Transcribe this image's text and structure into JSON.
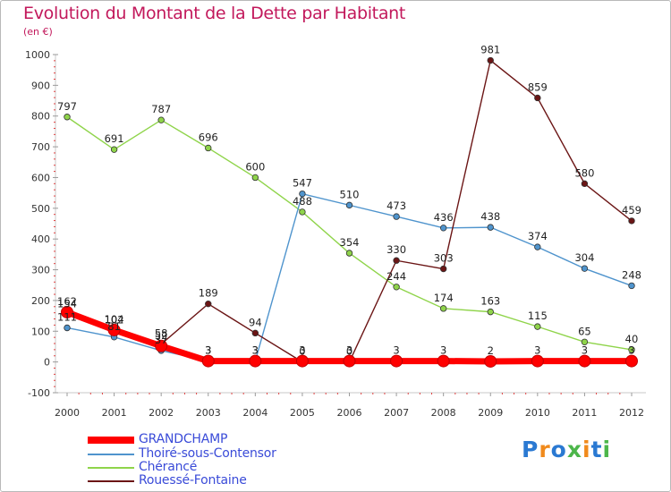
{
  "title": "Evolution du Montant de la Dette par Habitant",
  "unit": "(en €)",
  "brand": "Proxiti",
  "chart_data": {
    "type": "line",
    "x": [
      "2000",
      "2001",
      "2002",
      "2003",
      "2004",
      "2005",
      "2006",
      "2007",
      "2008",
      "2009",
      "2010",
      "2011",
      "2012"
    ],
    "ylim": [
      -100,
      1000
    ],
    "yticks": [
      "-100",
      "0",
      "100",
      "200",
      "300",
      "400",
      "500",
      "600",
      "700",
      "800",
      "900",
      "1000"
    ],
    "grid": false,
    "series": [
      {
        "name": "Chérancé",
        "color": "#8fd44a",
        "values": [
          797,
          691,
          787,
          696,
          600,
          488,
          354,
          244,
          174,
          163,
          115,
          65,
          40
        ],
        "labels": [
          "797",
          "691",
          "787",
          "696",
          "600",
          "488",
          "354",
          "244",
          "174",
          "163",
          "115",
          "65",
          "40"
        ]
      },
      {
        "name": "Thoiré-sous-Contensor",
        "color": "#4f94cd",
        "values": [
          111,
          81,
          37,
          3,
          3,
          547,
          510,
          473,
          436,
          438,
          374,
          304,
          248
        ],
        "labels": [
          "111",
          "81",
          "37",
          "3",
          "3",
          "547",
          "510",
          "473",
          "436",
          "438",
          "374",
          "304",
          "248"
        ]
      },
      {
        "name": "Rouessé-Fontaine",
        "color": "#6b1515",
        "values": [
          154,
          102,
          58,
          189,
          94,
          0,
          0,
          330,
          303,
          981,
          859,
          580,
          459
        ],
        "labels": [
          "154",
          "102",
          "58",
          "189",
          "94",
          "0",
          "0",
          "330",
          "303",
          "981",
          "859",
          "580",
          "459"
        ]
      },
      {
        "name": "GRANDCHAMP",
        "color": "#ff0000",
        "values": [
          162,
          104,
          52,
          3,
          3,
          3,
          3,
          3,
          3,
          2,
          3,
          3,
          3
        ],
        "labels": [
          "162",
          "104",
          "52",
          "3",
          "3",
          "3",
          "3",
          "3",
          "3",
          "2",
          "3",
          "3",
          "3"
        ]
      }
    ]
  },
  "legend": [
    {
      "label": "GRANDCHAMP",
      "color": "#ff0000"
    },
    {
      "label": "Thoiré-sous-Contensor",
      "color": "#4f94cd"
    },
    {
      "label": "Chérancé",
      "color": "#8fd44a"
    },
    {
      "label": "Rouessé-Fontaine",
      "color": "#6b1515"
    }
  ]
}
